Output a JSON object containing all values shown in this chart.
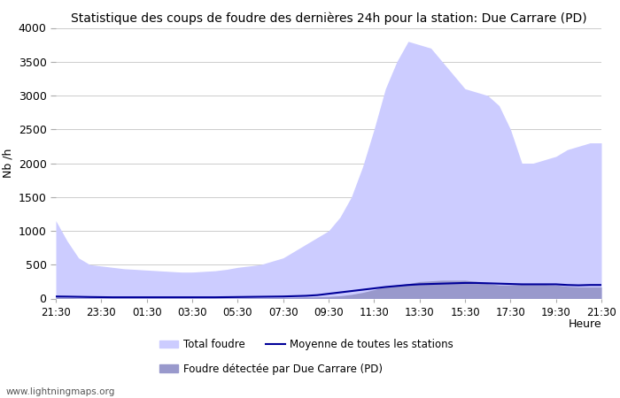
{
  "title": "Statistique des coups de foudre des dernières 24h pour la station: Due Carrare (PD)",
  "ylabel": "Nb /h",
  "xlabel": "Heure",
  "watermark": "www.lightningmaps.org",
  "ylim": [
    0,
    4000
  ],
  "yticks": [
    0,
    500,
    1000,
    1500,
    2000,
    2500,
    3000,
    3500,
    4000
  ],
  "xtick_labels": [
    "21:30",
    "23:30",
    "01:30",
    "03:30",
    "05:30",
    "07:30",
    "09:30",
    "11:30",
    "13:30",
    "15:30",
    "17:30",
    "19:30",
    "21:30"
  ],
  "legend": {
    "total_foudre": "Total foudre",
    "moyenne": "Moyenne de toutes les stations",
    "local": "Foudre détectée par Due Carrare (PD)"
  },
  "colors": {
    "total_fill": "#ccccff",
    "local_fill": "#9999cc",
    "moyenne_line": "#000099",
    "grid": "#cccccc",
    "background": "#ffffff",
    "axes_background": "#ffffff"
  },
  "time_points": [
    0,
    1,
    2,
    3,
    4,
    5,
    6,
    7,
    8,
    9,
    10,
    11,
    12,
    13,
    14,
    15,
    16,
    17,
    18,
    19,
    20,
    21,
    22,
    23,
    24,
    25,
    26,
    27,
    28,
    29,
    30,
    31,
    32,
    33,
    34,
    35,
    36,
    37,
    38,
    39,
    40,
    41,
    42,
    43,
    44,
    45,
    46,
    47,
    48
  ],
  "total_foudre": [
    1150,
    850,
    600,
    500,
    480,
    460,
    440,
    430,
    420,
    410,
    400,
    390,
    390,
    400,
    410,
    430,
    460,
    480,
    500,
    550,
    600,
    700,
    800,
    900,
    1000,
    1200,
    1500,
    1950,
    2500,
    3100,
    3500,
    3800,
    3750,
    3700,
    3500,
    3300,
    3100,
    3050,
    3000,
    2850,
    2500,
    2000,
    2000,
    2050,
    2100,
    2200,
    2250,
    2300,
    2300
  ],
  "local_foudre": [
    20,
    15,
    10,
    10,
    8,
    8,
    8,
    8,
    8,
    8,
    8,
    8,
    8,
    8,
    8,
    8,
    8,
    10,
    10,
    12,
    15,
    18,
    22,
    25,
    30,
    40,
    60,
    90,
    130,
    180,
    200,
    220,
    250,
    260,
    270,
    270,
    270,
    250,
    220,
    200,
    200,
    210,
    220,
    210,
    200,
    180,
    170,
    170,
    170
  ],
  "moyenne_line": [
    30,
    28,
    25,
    22,
    20,
    18,
    18,
    18,
    18,
    18,
    18,
    18,
    18,
    18,
    18,
    20,
    22,
    24,
    26,
    28,
    30,
    35,
    40,
    50,
    70,
    90,
    110,
    130,
    150,
    170,
    185,
    200,
    210,
    215,
    220,
    225,
    230,
    230,
    225,
    220,
    215,
    210,
    210,
    210,
    210,
    200,
    195,
    200,
    200
  ]
}
